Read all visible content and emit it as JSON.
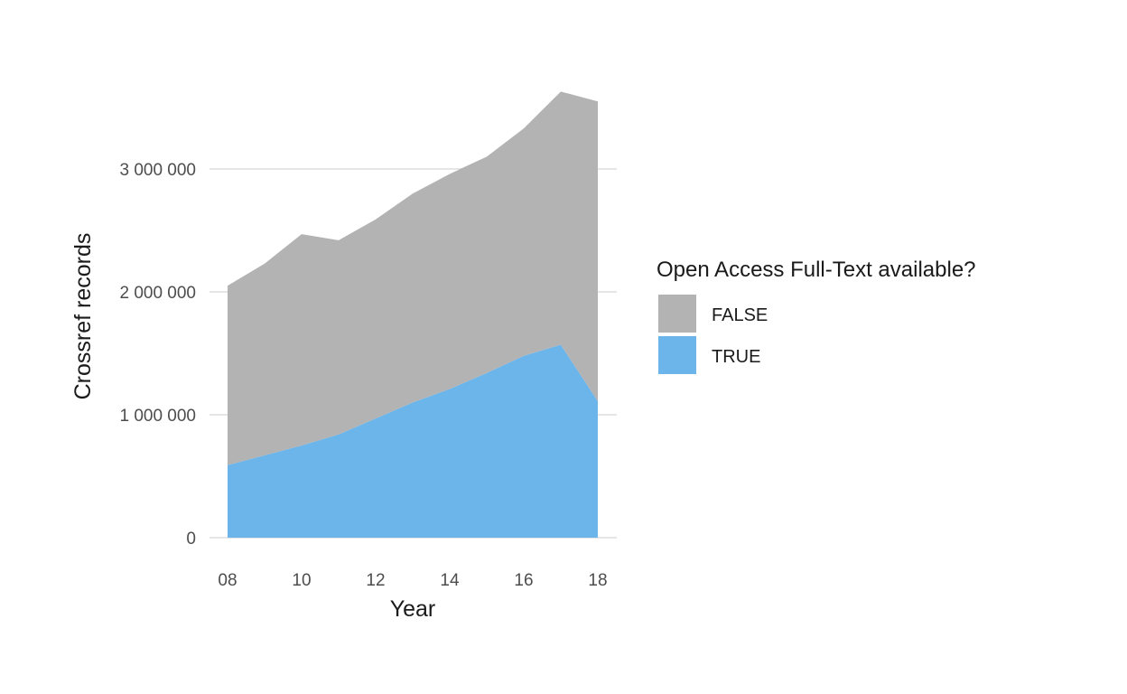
{
  "chart_data": {
    "type": "area",
    "stacked": true,
    "title": "",
    "xlabel": "Year",
    "ylabel": "Crossref records",
    "x": [
      2008,
      2009,
      2010,
      2011,
      2012,
      2013,
      2014,
      2015,
      2016,
      2017,
      2018
    ],
    "x_tick_values": [
      2008,
      2010,
      2012,
      2014,
      2016,
      2018
    ],
    "x_tick_labels": [
      "08",
      "10",
      "12",
      "14",
      "16",
      "18"
    ],
    "xlim": [
      2007.8,
      2018.5
    ],
    "y_tick_values": [
      0,
      1000000,
      2000000,
      3000000
    ],
    "y_tick_labels": [
      "0",
      "1 000 000",
      "2 000 000",
      "3 000 000"
    ],
    "ylim": [
      0,
      3700000
    ],
    "grid": true,
    "legend": {
      "title": "Open Access Full-Text available?",
      "position": "right"
    },
    "series": [
      {
        "name": "FALSE",
        "color": "#b3b3b3",
        "values": [
          1460000,
          1560000,
          1720000,
          1580000,
          1620000,
          1700000,
          1750000,
          1760000,
          1850000,
          2060000,
          2440000
        ]
      },
      {
        "name": "TRUE",
        "color": "#6bb5ea",
        "values": [
          590000,
          670000,
          750000,
          840000,
          970000,
          1100000,
          1210000,
          1340000,
          1480000,
          1570000,
          1110000
        ]
      }
    ]
  }
}
